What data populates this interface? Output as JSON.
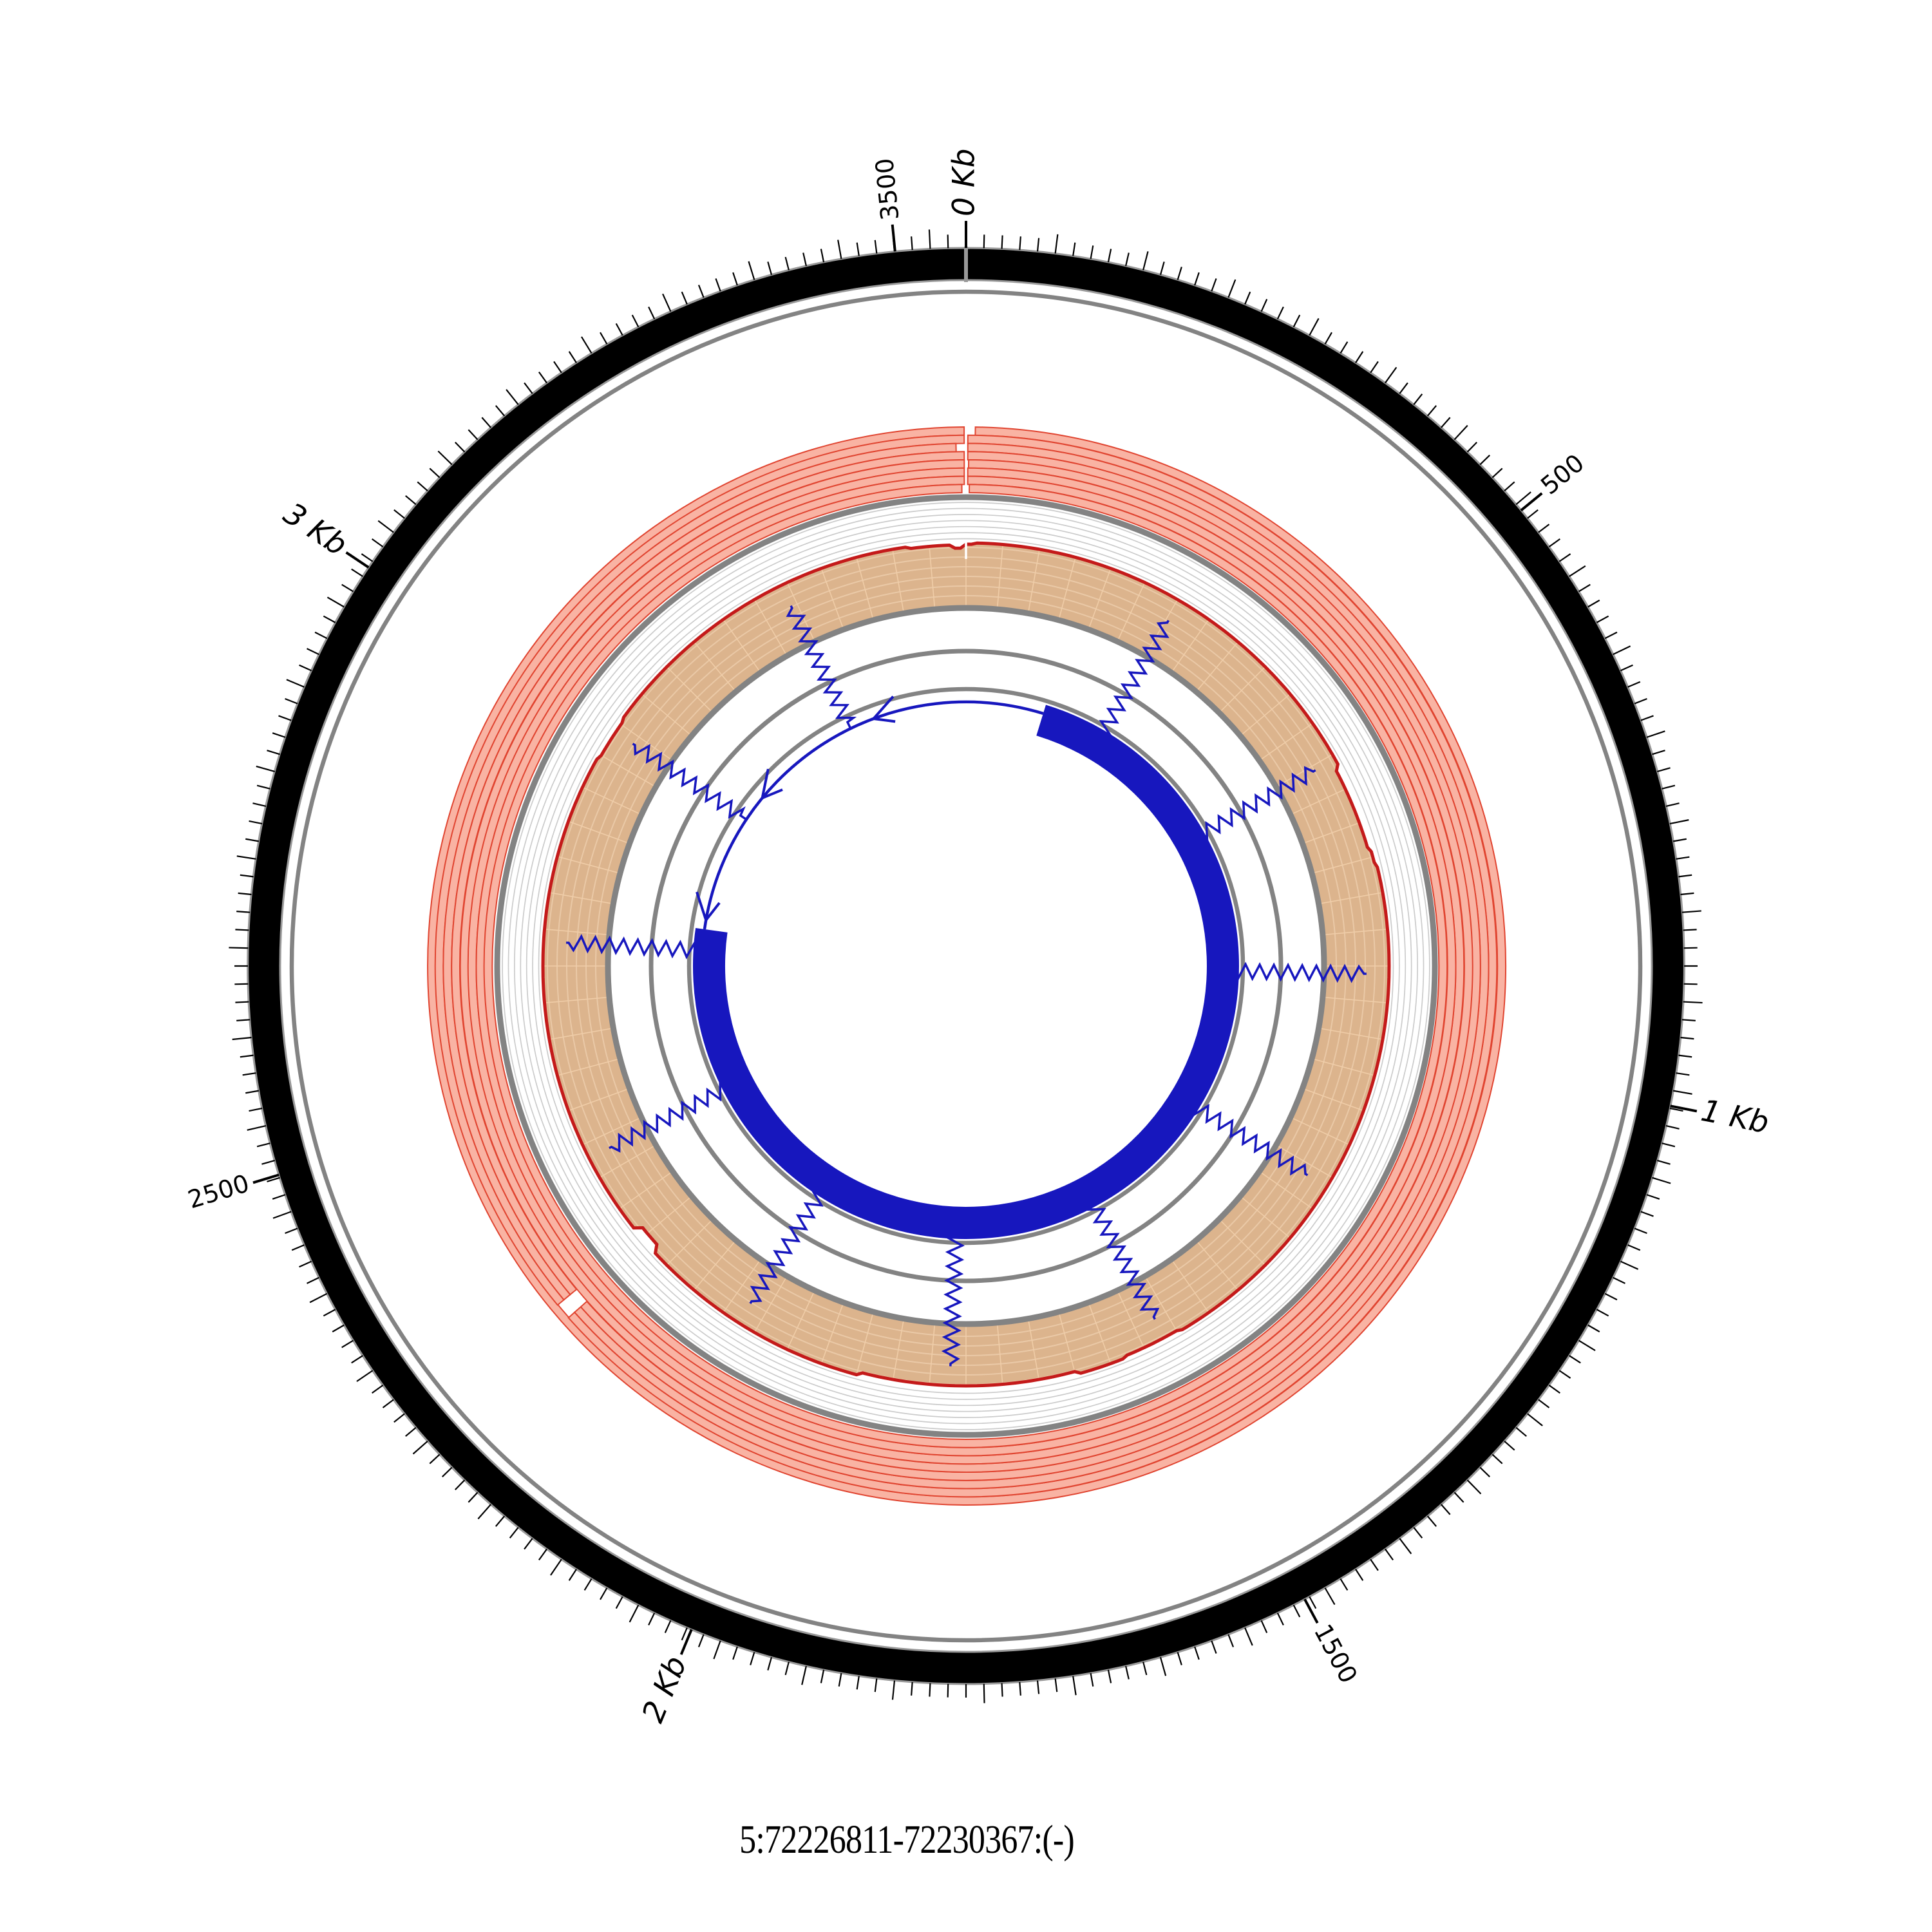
{
  "caption": "5:72226811-72230367:(-)",
  "chart_data": {
    "type": "circos",
    "title": "5:72226811-72230367:(-)",
    "region": {
      "chromosome": "5",
      "start": 72226811,
      "end": 72230367,
      "strand": "(-)",
      "length_nt": 3556
    },
    "ruler": {
      "unit": "nt",
      "total_nt": 3556,
      "minor_tick_count": 252,
      "labels": [
        {
          "nt": 0,
          "text": "0 Kb",
          "kb": true,
          "flip": false
        },
        {
          "nt": 500,
          "text": "500",
          "kb": false,
          "flip": false
        },
        {
          "nt": 1000,
          "text": "1 Kb",
          "kb": true,
          "flip": false
        },
        {
          "nt": 1500,
          "text": "1500",
          "kb": false,
          "flip": false
        },
        {
          "nt": 2000,
          "text": "2 Kb",
          "kb": true,
          "flip": true
        },
        {
          "nt": 2500,
          "text": "2500",
          "kb": false,
          "flip": true
        },
        {
          "nt": 3000,
          "text": "3 Kb",
          "kb": true,
          "flip": true
        },
        {
          "nt": 3500,
          "text": "3500",
          "kb": false,
          "flip": false
        }
      ]
    },
    "reads_track": {
      "description": "stacked circular read alignments, junction break at position 0",
      "row_count": 8,
      "rows": [
        {
          "gaps_deg": [
            [
              359.8,
              1.0
            ]
          ]
        },
        {
          "gaps_deg": [
            [
              359.8,
              0.2
            ],
            [
              228.5,
              230.3
            ]
          ]
        },
        {
          "gaps_deg": [
            [
              358.9,
              0.2
            ],
            [
              228.5,
              230.3
            ]
          ]
        },
        {
          "gaps_deg": [
            [
              359.8,
              0.2
            ],
            [
              228.5,
              230.3
            ]
          ]
        },
        {
          "gaps_deg": [
            [
              359.8,
              0.3
            ]
          ]
        },
        {
          "gaps_deg": [
            [
              359.8,
              0.2
            ]
          ]
        },
        {
          "gaps_deg": [
            [
              359.8,
              0.2
            ]
          ]
        },
        {
          "gaps_deg": [
            [
              359.5,
              0.4
            ]
          ]
        }
      ]
    },
    "coverage_track": {
      "description": "depth of coverage histogram with red outline",
      "default_level_r": 657,
      "levels": [
        {
          "from": 352.0,
          "to": 357.8,
          "r": 654
        },
        {
          "from": 357.8,
          "to": 360.0,
          "r": 649
        },
        {
          "from": 0.0,
          "to": 1.2,
          "r": 655
        },
        {
          "from": 62,
          "to": 74,
          "r": 650
        },
        {
          "from": 74,
          "to": 76,
          "r": 654
        },
        {
          "from": 150,
          "to": 158,
          "r": 654
        },
        {
          "from": 165,
          "to": 195,
          "r": 652
        },
        {
          "from": 228,
          "to": 231.5,
          "r": 646
        },
        {
          "from": 300,
          "to": 306,
          "r": 654
        }
      ],
      "grid_radii": [
        663.5,
        672.9,
        682.3,
        691.7,
        701.1,
        710.5,
        719.9
      ],
      "inner_grid_radii": [
        575,
        590,
        605,
        620,
        635,
        650
      ],
      "radial_grid_step_deg": 5
    },
    "junction_marks": {
      "description": "blue sawtooth radial marks every 300 nt",
      "positions_nt": [
        300,
        600,
        900,
        1200,
        1500,
        1800,
        2100,
        2400,
        2700,
        3000,
        3300
      ],
      "r_inner": 412,
      "r_outer": 622,
      "amplitude": 11
    },
    "transcript": {
      "strand": "-",
      "thick_deg": [
        17,
        278
      ],
      "thin_deg": [
        278,
        377
      ],
      "arrows_deg": [
        280,
        309.5,
        339.5
      ]
    },
    "geometry": {
      "center": 1500,
      "ring_outer": 1115,
      "ring_inner": 1065,
      "gray_circle_r": 1047,
      "reads_outer": 837,
      "reads_row_h": 12.75,
      "cov_outer_gray": 728,
      "cov_baseline": 556,
      "cov_fill_base": 560,
      "inner_circles": [
        {
          "r": 489,
          "w": 7
        },
        {
          "r": 430,
          "w": 6.5
        }
      ],
      "transcript_r1": 374,
      "transcript_r2": 424,
      "thin_r": 410,
      "tick_r": 1115,
      "minor_tick_len": 21,
      "minor_tick_len5": 30,
      "major_tick_len": 42,
      "label_r": 1164
    }
  },
  "style": {
    "background": "#ffffff",
    "read_fill": "#F9B3A3",
    "read_stroke": "#E04430",
    "coverage_fill": "#DCB48D",
    "coverage_line": "#C41A1A",
    "grid_color": "#CBCBCB",
    "inner_grid_color": "#EAC9A7",
    "radial_grid_color": "#F0CDA8",
    "gray_circle": "#838383",
    "ring_edge": "#999999",
    "ring_fill": "#000000",
    "blue": "#1717BE",
    "tick_color": "#000000",
    "label_color": "#000000"
  }
}
